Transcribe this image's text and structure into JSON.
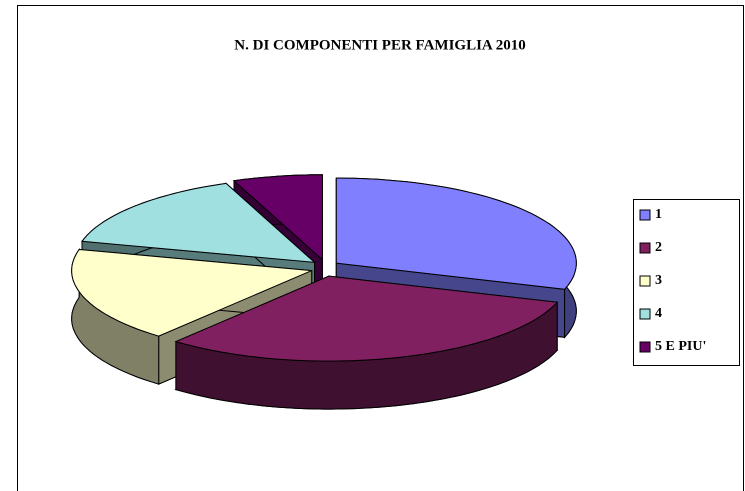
{
  "chart_data": {
    "type": "pie",
    "title": "N. DI COMPONENTI PER FAMIGLIA 2010",
    "categories": [
      "1",
      "2",
      "3",
      "4",
      "5 E PIU'"
    ],
    "values": [
      30,
      31,
      18,
      15,
      6
    ],
    "colors": [
      "#8080ff",
      "#802060",
      "#ffffcc",
      "#a0e0e0",
      "#660066"
    ],
    "legend": "right"
  }
}
